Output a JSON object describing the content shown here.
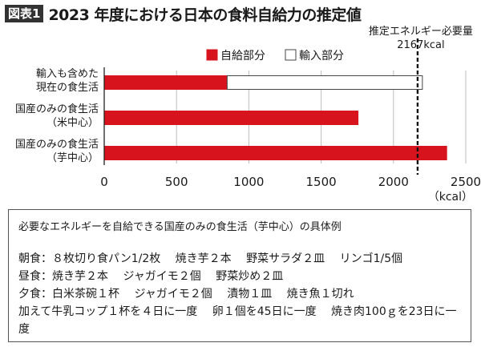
{
  "header": {
    "fig_label": "図表1",
    "title": "2023 年度における日本の食料自給力の推定値"
  },
  "chart_data": {
    "type": "bar",
    "orientation": "horizontal",
    "stacked": true,
    "categories": [
      [
        "輸入も含めた",
        "現在の食生活"
      ],
      [
        "国産のみの食生活",
        "（米中心）"
      ],
      [
        "国産のみの食生活",
        "（芋中心）"
      ]
    ],
    "series": [
      {
        "name": "自給部分",
        "color": "#d7141e",
        "values": [
          850,
          1755,
          2368
        ]
      },
      {
        "name": "輸入部分",
        "color": "#ffffff",
        "values": [
          1350,
          0,
          0
        ]
      }
    ],
    "xlim": [
      0,
      2500
    ],
    "xticks": [
      0,
      500,
      1000,
      1500,
      2000,
      2500
    ],
    "xunit": "（kcal）",
    "grid": true,
    "legend_position": "top",
    "reference_line": {
      "value": 2167,
      "label": "推定エネルギー必要量",
      "value_label": "2167kcal"
    }
  },
  "note": {
    "heading": "必要なエネルギーを自給できる国産のみの食生活（芋中心）の具体例",
    "lines": [
      "朝食：８枚切り食パン1/2枚　 焼き芋２本　 野菜サラダ２皿　 リンゴ1/5個",
      "昼食：焼き芋２本　 ジャガイモ２個　 野菜炒め２皿",
      "夕食：白米茶碗１杯　 ジャガイモ２個　 漬物１皿　 焼き魚１切れ",
      "加えて牛乳コップ１杯を４日に一度　 卵１個を45日に一度　 焼き肉100ｇを23日に一度"
    ]
  }
}
